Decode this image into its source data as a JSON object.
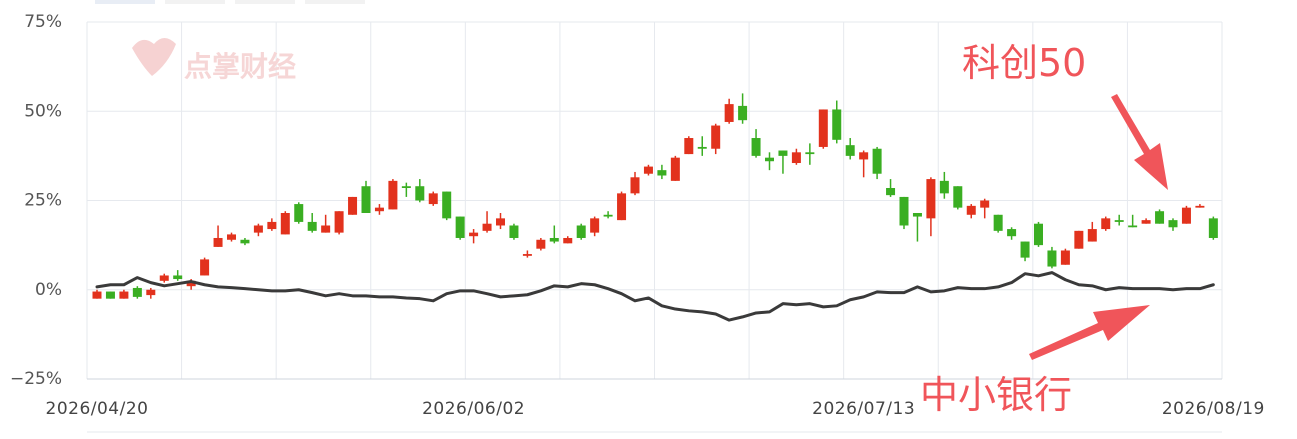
{
  "chart_data": {
    "type": "candlestick",
    "watermark": "点掌财经",
    "categories": [
      "2026/04/20",
      null,
      null,
      null,
      null,
      null,
      null,
      null,
      null,
      null,
      null,
      null,
      null,
      null,
      null,
      null,
      null,
      null,
      null,
      null,
      null,
      null,
      null,
      null,
      null,
      null,
      null,
      null,
      "2026/06/02",
      null,
      null,
      null,
      null,
      null,
      null,
      null,
      null,
      null,
      null,
      null,
      null,
      null,
      null,
      null,
      null,
      null,
      null,
      null,
      null,
      null,
      null,
      null,
      null,
      null,
      null,
      null,
      null,
      "2026/07/13",
      null,
      null,
      null,
      null,
      null,
      null,
      null,
      null,
      null,
      null,
      null,
      null,
      null,
      null,
      null,
      null,
      null,
      null,
      null,
      null,
      null,
      null,
      null,
      null,
      null,
      "2026/08/19"
    ],
    "ylim": [
      -25,
      75
    ],
    "yticks": [
      {
        "value": -25,
        "label": "−25%"
      },
      {
        "value": 0,
        "label": "0%"
      },
      {
        "value": 25,
        "label": "25%"
      },
      {
        "value": 50,
        "label": "50%"
      },
      {
        "value": 75,
        "label": "75%"
      }
    ],
    "grid": true,
    "series": [
      {
        "name": "科创50",
        "type": "candlestick",
        "up_color": "#e2321d",
        "down_color": "#3aae22",
        "label_color": "#f0555a",
        "open": [
          -2.5,
          -0.5,
          -2.5,
          0.5,
          -1.5,
          2.5,
          4,
          1,
          4,
          12,
          14,
          14,
          16,
          17,
          15.5,
          24,
          19,
          16,
          16,
          21,
          29,
          22,
          22.5,
          29,
          29,
          24,
          27.5,
          20.5,
          15,
          16.5,
          18,
          18,
          9.5,
          11.5,
          14.5,
          13,
          18,
          16,
          21,
          19.5,
          27,
          32.5,
          33.5,
          30.5,
          38,
          40,
          39.5,
          47,
          51.5,
          42.5,
          37,
          39,
          35.5,
          38.5,
          40,
          50.5,
          40.5,
          36.5,
          39.5,
          28.5,
          26,
          21.5,
          20,
          30.5,
          29,
          21,
          23,
          21,
          17,
          13.5,
          18.5,
          11,
          7,
          11.5,
          13.5,
          17,
          19.5,
          18,
          18.5,
          22,
          19.5,
          18.5,
          23,
          20
        ],
        "high": [
          0,
          -0.5,
          0,
          1,
          0.5,
          4.5,
          5.5,
          3,
          9,
          18,
          16,
          14.5,
          18.5,
          20,
          22,
          24.5,
          21.5,
          21,
          22,
          26,
          30.5,
          24,
          31,
          30,
          31,
          27.5,
          27.5,
          20.5,
          17,
          22,
          21.5,
          18.5,
          11,
          14.5,
          18,
          15,
          18.5,
          20.5,
          22,
          27.5,
          33,
          35,
          35,
          37.5,
          43,
          43,
          46.5,
          53.5,
          55,
          45,
          38.5,
          39,
          39.5,
          41,
          50.5,
          53,
          42.5,
          39,
          40,
          31,
          26,
          21.5,
          31.5,
          33,
          29,
          24,
          25.5,
          21,
          17.5,
          13.5,
          19,
          12,
          11.5,
          16.5,
          19,
          20.5,
          21,
          21,
          20,
          22.5,
          20,
          23.5,
          24,
          20.5
        ],
        "low": [
          -2.5,
          -2.5,
          -2.5,
          -2.5,
          -2.5,
          2,
          2.5,
          0,
          4,
          12,
          13.5,
          12.5,
          15,
          16.5,
          15.5,
          18.5,
          16,
          16,
          15.5,
          21,
          21.5,
          21,
          22.5,
          26,
          24.5,
          23.5,
          19.5,
          14,
          13,
          16,
          17,
          14,
          9,
          11,
          13,
          13,
          14,
          15,
          20,
          19.5,
          26.5,
          32,
          31,
          30.5,
          38,
          37.5,
          38,
          46.5,
          46.5,
          37,
          33.5,
          32.5,
          35,
          35,
          39.5,
          41,
          36.5,
          31.5,
          31,
          26,
          17,
          13.5,
          15,
          25.5,
          22.5,
          20,
          20,
          16,
          14,
          8,
          12,
          6,
          7,
          11.5,
          13.5,
          16.5,
          18,
          17.5,
          18.5,
          18.5,
          16.5,
          18.5,
          23,
          14
        ],
        "close": [
          -0.5,
          -2.5,
          -0.5,
          -2,
          0,
          4,
          3,
          2.5,
          8.5,
          14.5,
          15.5,
          13,
          18,
          19,
          21.5,
          19,
          16.5,
          18,
          22,
          26,
          21.5,
          23,
          30.5,
          28.5,
          25,
          27,
          20,
          14.5,
          16,
          18.5,
          20,
          14.5,
          10,
          14,
          13.5,
          14.5,
          14.5,
          20,
          20.5,
          27,
          31.5,
          34.5,
          32,
          37,
          42.5,
          39.5,
          46,
          52,
          47.5,
          37.5,
          36,
          37.5,
          38.5,
          38,
          50.5,
          42,
          37.5,
          38.5,
          32.5,
          26.5,
          18,
          20.5,
          31,
          27,
          23,
          23.5,
          25,
          16.5,
          15,
          9,
          12.5,
          6.5,
          11,
          16.5,
          17,
          20,
          19,
          17.5,
          19.5,
          18.5,
          17.5,
          23,
          23.5,
          14.5
        ]
      },
      {
        "name": "中小银行",
        "type": "line",
        "color": "#3a3a3a",
        "label_color": "#f0555a",
        "values": [
          0.8,
          1.4,
          1.4,
          3.4,
          2.0,
          1.1,
          1.7,
          2.3,
          1.4,
          0.8,
          0.6,
          0.3,
          0,
          -0.3,
          -0.3,
          0,
          -0.8,
          -1.7,
          -1.1,
          -1.7,
          -1.7,
          -2.0,
          -2.0,
          -2.3,
          -2.5,
          -3.1,
          -1.1,
          -0.3,
          -0.3,
          -1.1,
          -2.0,
          -1.7,
          -1.4,
          -0.3,
          1.1,
          0.8,
          1.7,
          1.4,
          0.3,
          -1.1,
          -3.1,
          -2.3,
          -4.5,
          -5.4,
          -5.9,
          -6.2,
          -6.8,
          -8.5,
          -7.6,
          -6.5,
          -6.2,
          -3.9,
          -4.2,
          -3.9,
          -4.8,
          -4.5,
          -2.8,
          -2.0,
          -0.6,
          -0.8,
          -0.8,
          0.8,
          -0.6,
          -0.3,
          0.6,
          0.3,
          0.3,
          0.8,
          2.0,
          4.5,
          3.9,
          4.8,
          2.8,
          1.4,
          1.1,
          0,
          0.6,
          0.3,
          0.3,
          0.3,
          0,
          0.3,
          0.3,
          1.4
        ]
      }
    ]
  }
}
